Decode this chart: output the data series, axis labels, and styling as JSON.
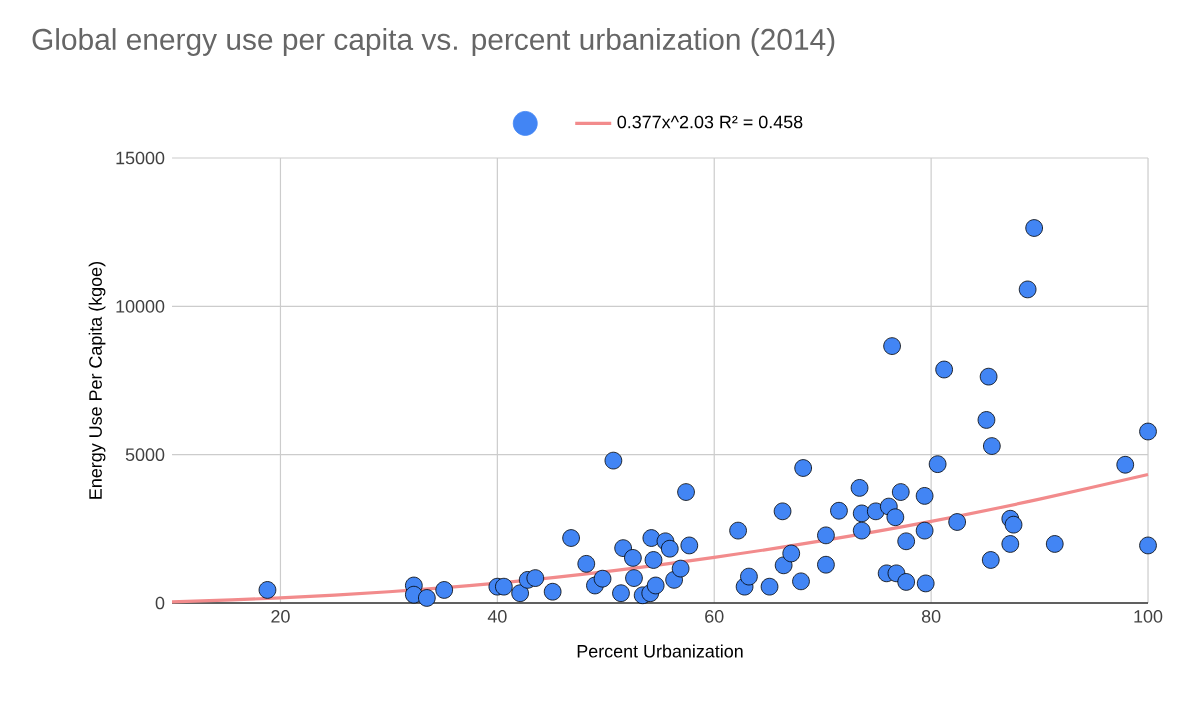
{
  "chart_data": {
    "type": "scatter",
    "title": "Global energy use per capita vs. percent urbanization (2014)",
    "xlabel": "Percent Urbanization",
    "ylabel": "Energy Use Per Capita (kgoe)",
    "xlim": [
      10,
      100
    ],
    "ylim": [
      0,
      15000
    ],
    "xticks": [
      20,
      40,
      60,
      80,
      100
    ],
    "yticks": [
      0,
      5000,
      10000,
      15000
    ],
    "grid": true,
    "legend": "top",
    "marker": "circle",
    "series": [
      {
        "color": "#4285f4",
        "x": [
          18.8,
          32.3,
          32.3,
          33.5,
          35.1,
          40.0,
          40.6,
          42.1,
          42.8,
          43.5,
          45.1,
          46.8,
          48.2,
          49.0,
          49.7,
          50.7,
          51.4,
          51.6,
          52.5,
          52.6,
          53.4,
          54.1,
          54.6,
          54.2,
          54.4,
          55.5,
          55.9,
          56.3,
          56.9,
          57.4,
          57.7,
          62.2,
          62.8,
          63.2,
          65.1,
          66.3,
          66.4,
          67.1,
          68.0,
          68.2,
          70.3,
          70.3,
          71.5,
          73.4,
          73.6,
          73.6,
          74.9,
          76.1,
          76.4,
          75.9,
          76.8,
          76.7,
          77.2,
          77.7,
          77.7,
          79.4,
          79.4,
          79.5,
          80.6,
          81.2,
          82.4,
          85.3,
          85.1,
          85.6,
          85.5,
          87.3,
          87.6,
          87.3,
          89.5,
          88.9,
          91.4,
          97.9,
          100,
          100
        ],
        "values": [
          440,
          590,
          280,
          170,
          440,
          550,
          550,
          330,
          780,
          840,
          380,
          2190,
          1320,
          590,
          820,
          4800,
          330,
          1850,
          1520,
          840,
          260,
          330,
          590,
          2190,
          1450,
          2080,
          1830,
          780,
          1160,
          3740,
          1940,
          2440,
          550,
          890,
          550,
          3090,
          1270,
          1670,
          730,
          4550,
          2280,
          1290,
          3110,
          3880,
          3020,
          2440,
          3090,
          3250,
          8660,
          1000,
          1000,
          2890,
          3740,
          2080,
          710,
          3610,
          2440,
          660,
          4680,
          7870,
          2730,
          7630,
          6170,
          5290,
          1450,
          2840,
          2640,
          1990,
          12640,
          10570,
          1990,
          4660,
          5780,
          1940
        ]
      },
      {
        "type": "line",
        "name": "0.377x^2.03 R² = 0.458",
        "color": "#f28b8c",
        "marker": "none",
        "x": [
          10,
          20,
          30,
          40,
          50,
          60,
          70,
          80,
          90,
          100
        ],
        "values": [
          40,
          170,
          380,
          670,
          1060,
          1540,
          2100,
          2750,
          3500,
          4330
        ]
      }
    ]
  }
}
